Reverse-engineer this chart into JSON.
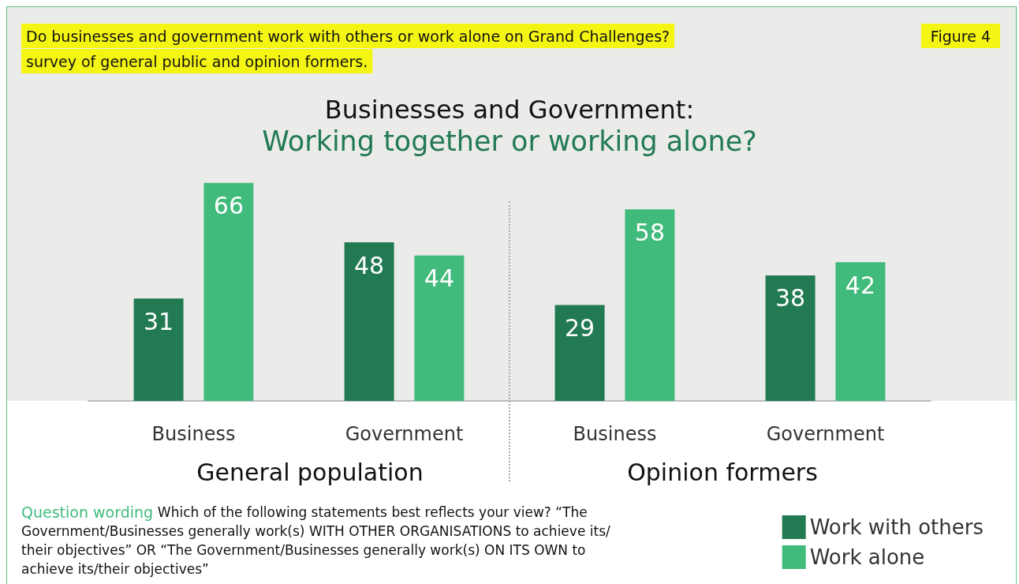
{
  "chart_data": {
    "type": "bar",
    "title": "Businesses and Government:",
    "subtitle": "Working together or working alone?",
    "categories": [
      "Business",
      "Government",
      "Business",
      "Government"
    ],
    "series": [
      {
        "name": "Work with others",
        "color": "#217a52",
        "values": [
          31,
          48,
          29,
          38
        ]
      },
      {
        "name": "Work alone",
        "color": "#41bb7c",
        "values": [
          66,
          44,
          58,
          42
        ]
      }
    ],
    "data_labels": true,
    "legend": "bottom right",
    "annotations": [
      "Do businesses and government work with others or work alone on Grand Challenges?",
      "survey of general public and opinion formers.",
      "Figure 4",
      "General population",
      "Opinion formers",
      "Question wording",
      "Which of the following statements best reflects your view? “The Government/Businesses generally work(s) WITH OTHER ORGANISATIONS to achieve its/their objectives” OR “The Government/Businesses generally work(s) ON ITS OWN to achieve its/their objectives”"
    ]
  }
}
